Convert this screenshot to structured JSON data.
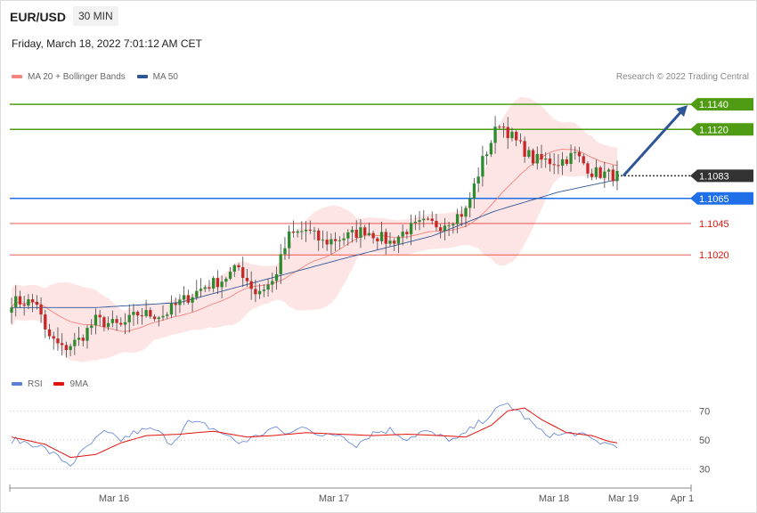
{
  "header": {
    "symbol": "EUR/USD",
    "timeframe": "30 MIN",
    "date": "Friday, March 18, 2022 7:01:12 AM CET",
    "credit": "Research © 2022 Trading Central"
  },
  "legend_price": [
    {
      "label": "MA 20 + Bollinger Bands",
      "color": "#f4837d"
    },
    {
      "label": "MA 50",
      "color": "#2e5597"
    }
  ],
  "legend_rsi": [
    {
      "label": "RSI",
      "color": "#5b7fd6"
    },
    {
      "label": "9MA",
      "color": "#e3120b"
    }
  ],
  "chart_data": [
    {
      "type": "candlestick",
      "title": "EUR/USD",
      "ylim": [
        1.0925,
        1.1155
      ],
      "last_price": 1.1083,
      "levels": [
        {
          "value": 1.114,
          "label": "1.1140",
          "kind": "resistance",
          "color": "#4f9c14"
        },
        {
          "value": 1.112,
          "label": "1.1120",
          "kind": "resistance",
          "color": "#4f9c14"
        },
        {
          "value": 1.1083,
          "label": "1.1083",
          "kind": "last price",
          "color": "#333333"
        },
        {
          "value": 1.1065,
          "label": "1.1065",
          "kind": "pivot",
          "color": "#1e6fe8"
        },
        {
          "value": 1.1045,
          "label": "1.1045",
          "kind": "support",
          "color": "#e3120b"
        },
        {
          "value": 1.102,
          "label": "1.1020",
          "kind": "support",
          "color": "#e3120b"
        }
      ],
      "target_arrow": {
        "from": 1.1083,
        "to": 1.114
      },
      "x_ticks": [
        "Mar 16",
        "Mar 17",
        "Mar 18",
        "Mar 19",
        "Apr 1"
      ],
      "close_keypoints": [
        [
          0,
          1.0983
        ],
        [
          6,
          1.0982
        ],
        [
          8,
          1.0958
        ],
        [
          12,
          1.0945
        ],
        [
          16,
          1.0952
        ],
        [
          20,
          1.0968
        ],
        [
          26,
          1.0963
        ],
        [
          30,
          1.0973
        ],
        [
          36,
          1.0972
        ],
        [
          40,
          1.0982
        ],
        [
          46,
          1.0995
        ],
        [
          50,
          1.1
        ],
        [
          54,
          1.101
        ],
        [
          58,
          1.099
        ],
        [
          62,
          1.0998
        ],
        [
          66,
          1.1035
        ],
        [
          70,
          1.104
        ],
        [
          74,
          1.103
        ],
        [
          80,
          1.1035
        ],
        [
          84,
          1.104
        ],
        [
          90,
          1.103
        ],
        [
          94,
          1.104
        ],
        [
          98,
          1.1045
        ],
        [
          102,
          1.1044
        ],
        [
          108,
          1.1055
        ],
        [
          112,
          1.1095
        ],
        [
          116,
          1.1126
        ],
        [
          120,
          1.111
        ],
        [
          124,
          1.1096
        ],
        [
          130,
          1.1094
        ],
        [
          134,
          1.11
        ],
        [
          138,
          1.1086
        ],
        [
          144,
          1.1083
        ]
      ],
      "ma50_keypoints": [
        [
          0,
          1.0978
        ],
        [
          20,
          1.0978
        ],
        [
          40,
          1.0982
        ],
        [
          60,
          1.1
        ],
        [
          80,
          1.1018
        ],
        [
          100,
          1.1035
        ],
        [
          115,
          1.1055
        ],
        [
          130,
          1.107
        ],
        [
          144,
          1.108
        ]
      ]
    },
    {
      "type": "line",
      "title": "RSI",
      "ylim": [
        20,
        80
      ],
      "levels": [
        70,
        50,
        30
      ],
      "series": [
        {
          "name": "RSI",
          "color": "#5b7fd6",
          "keypoints": [
            [
              0,
              50
            ],
            [
              6,
              47
            ],
            [
              10,
              40
            ],
            [
              14,
              33
            ],
            [
              18,
              45
            ],
            [
              22,
              55
            ],
            [
              26,
              50
            ],
            [
              30,
              56
            ],
            [
              34,
              57
            ],
            [
              38,
              48
            ],
            [
              42,
              62
            ],
            [
              46,
              60
            ],
            [
              50,
              55
            ],
            [
              54,
              48
            ],
            [
              58,
              52
            ],
            [
              62,
              58
            ],
            [
              66,
              54
            ],
            [
              70,
              60
            ],
            [
              74,
              52
            ],
            [
              78,
              54
            ],
            [
              82,
              47
            ],
            [
              86,
              55
            ],
            [
              90,
              57
            ],
            [
              94,
              51
            ],
            [
              98,
              56
            ],
            [
              102,
              52
            ],
            [
              106,
              50
            ],
            [
              110,
              59
            ],
            [
              114,
              68
            ],
            [
              118,
              75
            ],
            [
              122,
              66
            ],
            [
              126,
              55
            ],
            [
              130,
              53
            ],
            [
              134,
              55
            ],
            [
              138,
              50
            ],
            [
              142,
              47
            ],
            [
              144,
              47
            ]
          ]
        },
        {
          "name": "9MA",
          "color": "#e3120b",
          "keypoints": [
            [
              0,
              52
            ],
            [
              8,
              47
            ],
            [
              14,
              38
            ],
            [
              20,
              40
            ],
            [
              26,
              48
            ],
            [
              32,
              53
            ],
            [
              40,
              54
            ],
            [
              48,
              56
            ],
            [
              56,
              52
            ],
            [
              62,
              53
            ],
            [
              70,
              55
            ],
            [
              78,
              54
            ],
            [
              86,
              53
            ],
            [
              94,
              54
            ],
            [
              102,
              53
            ],
            [
              108,
              52
            ],
            [
              114,
              60
            ],
            [
              118,
              70
            ],
            [
              122,
              72
            ],
            [
              126,
              64
            ],
            [
              132,
              55
            ],
            [
              138,
              53
            ],
            [
              142,
              49
            ],
            [
              144,
              48
            ]
          ]
        }
      ]
    }
  ]
}
